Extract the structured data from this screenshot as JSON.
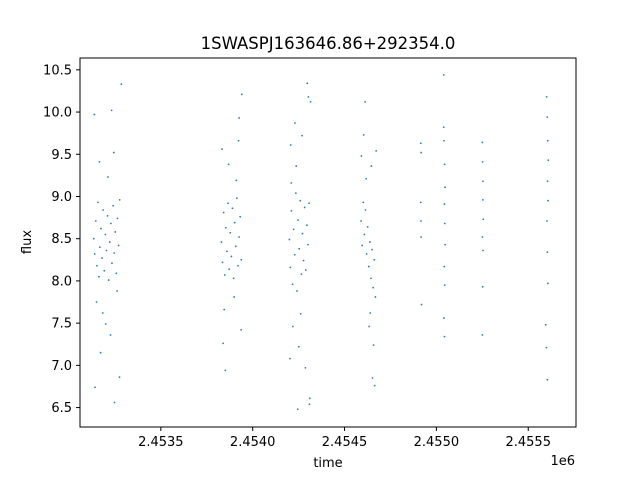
{
  "chart_data": {
    "type": "scatter",
    "title": "1SWASPJ163646.86+292354.0",
    "xlabel": "time",
    "ylabel": "flux",
    "x_offset_label": "1e6",
    "xlim": [
      2453060,
      2455760
    ],
    "ylim": [
      6.27,
      10.64
    ],
    "x_ticks": [
      {
        "value": 2453500,
        "label": "2.4535"
      },
      {
        "value": 2454000,
        "label": "2.4540"
      },
      {
        "value": 2454500,
        "label": "2.4545"
      },
      {
        "value": 2455000,
        "label": "2.4550"
      },
      {
        "value": 2455500,
        "label": "2.4555"
      }
    ],
    "y_ticks": [
      {
        "value": 6.5,
        "label": "6.5"
      },
      {
        "value": 7.0,
        "label": "7.0"
      },
      {
        "value": 7.5,
        "label": "7.5"
      },
      {
        "value": 8.0,
        "label": "8.0"
      },
      {
        "value": 8.5,
        "label": "8.5"
      },
      {
        "value": 9.0,
        "label": "9.0"
      },
      {
        "value": 9.5,
        "label": "9.5"
      },
      {
        "value": 10.0,
        "label": "10.0"
      },
      {
        "value": 10.5,
        "label": "10.5"
      }
    ],
    "grid": false,
    "marker_color": "#1f77b4",
    "series": [
      {
        "values": [
          {
            "x": 2453135,
            "y": 8.5
          },
          {
            "x": 2453140,
            "y": 8.32
          },
          {
            "x": 2453146,
            "y": 8.71
          },
          {
            "x": 2453152,
            "y": 8.18
          },
          {
            "x": 2453158,
            "y": 8.93
          },
          {
            "x": 2453163,
            "y": 8.05
          },
          {
            "x": 2453168,
            "y": 8.4
          },
          {
            "x": 2453174,
            "y": 8.62
          },
          {
            "x": 2453180,
            "y": 8.27
          },
          {
            "x": 2453186,
            "y": 8.84
          },
          {
            "x": 2453192,
            "y": 8.12
          },
          {
            "x": 2453198,
            "y": 8.55
          },
          {
            "x": 2453204,
            "y": 8.36
          },
          {
            "x": 2453210,
            "y": 8.77
          },
          {
            "x": 2453216,
            "y": 8.01
          },
          {
            "x": 2453222,
            "y": 8.46
          },
          {
            "x": 2453228,
            "y": 8.68
          },
          {
            "x": 2453234,
            "y": 8.21
          },
          {
            "x": 2453240,
            "y": 8.89
          },
          {
            "x": 2453246,
            "y": 8.33
          },
          {
            "x": 2453252,
            "y": 8.58
          },
          {
            "x": 2453258,
            "y": 8.09
          },
          {
            "x": 2453264,
            "y": 8.74
          },
          {
            "x": 2453270,
            "y": 8.42
          },
          {
            "x": 2453276,
            "y": 8.96
          },
          {
            "x": 2453138,
            "y": 9.97
          },
          {
            "x": 2453150,
            "y": 7.75
          },
          {
            "x": 2453166,
            "y": 9.41
          },
          {
            "x": 2453184,
            "y": 7.62
          },
          {
            "x": 2453212,
            "y": 9.23
          },
          {
            "x": 2453226,
            "y": 7.36
          },
          {
            "x": 2453244,
            "y": 9.52
          },
          {
            "x": 2453262,
            "y": 7.88
          },
          {
            "x": 2453142,
            "y": 6.74
          },
          {
            "x": 2453248,
            "y": 6.56
          },
          {
            "x": 2453285,
            "y": 10.33
          },
          {
            "x": 2453275,
            "y": 6.86
          },
          {
            "x": 2453232,
            "y": 10.02
          },
          {
            "x": 2453172,
            "y": 7.15
          },
          {
            "x": 2453200,
            "y": 7.49
          },
          {
            "x": 2453830,
            "y": 8.46
          },
          {
            "x": 2453836,
            "y": 8.22
          },
          {
            "x": 2453842,
            "y": 8.81
          },
          {
            "x": 2453848,
            "y": 8.07
          },
          {
            "x": 2453854,
            "y": 8.63
          },
          {
            "x": 2453860,
            "y": 8.35
          },
          {
            "x": 2453866,
            "y": 8.92
          },
          {
            "x": 2453872,
            "y": 8.14
          },
          {
            "x": 2453878,
            "y": 8.57
          },
          {
            "x": 2453884,
            "y": 8.29
          },
          {
            "x": 2453890,
            "y": 8.86
          },
          {
            "x": 2453896,
            "y": 8.03
          },
          {
            "x": 2453902,
            "y": 8.69
          },
          {
            "x": 2453908,
            "y": 8.41
          },
          {
            "x": 2453914,
            "y": 8.98
          },
          {
            "x": 2453920,
            "y": 8.18
          },
          {
            "x": 2453926,
            "y": 8.52
          },
          {
            "x": 2453932,
            "y": 8.76
          },
          {
            "x": 2453938,
            "y": 8.25
          },
          {
            "x": 2453833,
            "y": 9.56
          },
          {
            "x": 2453845,
            "y": 7.66
          },
          {
            "x": 2453869,
            "y": 9.38
          },
          {
            "x": 2453899,
            "y": 7.81
          },
          {
            "x": 2453923,
            "y": 9.66
          },
          {
            "x": 2453941,
            "y": 10.21
          },
          {
            "x": 2453937,
            "y": 7.42
          },
          {
            "x": 2453851,
            "y": 6.94
          },
          {
            "x": 2453839,
            "y": 7.26
          },
          {
            "x": 2453911,
            "y": 9.19
          },
          {
            "x": 2453926,
            "y": 9.93
          },
          {
            "x": 2454200,
            "y": 8.49
          },
          {
            "x": 2454205,
            "y": 8.16
          },
          {
            "x": 2454211,
            "y": 8.83
          },
          {
            "x": 2454217,
            "y": 7.96
          },
          {
            "x": 2454223,
            "y": 8.61
          },
          {
            "x": 2454229,
            "y": 8.31
          },
          {
            "x": 2454235,
            "y": 9.04
          },
          {
            "x": 2454241,
            "y": 7.88
          },
          {
            "x": 2454247,
            "y": 8.72
          },
          {
            "x": 2454253,
            "y": 8.38
          },
          {
            "x": 2454259,
            "y": 8.95
          },
          {
            "x": 2454265,
            "y": 8.08
          },
          {
            "x": 2454271,
            "y": 8.56
          },
          {
            "x": 2454277,
            "y": 8.24
          },
          {
            "x": 2454283,
            "y": 8.87
          },
          {
            "x": 2454289,
            "y": 8.13
          },
          {
            "x": 2454295,
            "y": 8.66
          },
          {
            "x": 2454301,
            "y": 8.43
          },
          {
            "x": 2454307,
            "y": 8.92
          },
          {
            "x": 2454207,
            "y": 9.61
          },
          {
            "x": 2454219,
            "y": 7.46
          },
          {
            "x": 2454237,
            "y": 9.36
          },
          {
            "x": 2454251,
            "y": 7.22
          },
          {
            "x": 2454269,
            "y": 9.72
          },
          {
            "x": 2454287,
            "y": 6.97
          },
          {
            "x": 2454303,
            "y": 10.18
          },
          {
            "x": 2454311,
            "y": 6.61
          },
          {
            "x": 2454309,
            "y": 6.54
          },
          {
            "x": 2454315,
            "y": 10.12
          },
          {
            "x": 2454203,
            "y": 7.08
          },
          {
            "x": 2454230,
            "y": 9.87
          },
          {
            "x": 2454261,
            "y": 7.61
          },
          {
            "x": 2454297,
            "y": 10.34
          },
          {
            "x": 2454245,
            "y": 6.48
          },
          {
            "x": 2454210,
            "y": 9.16
          },
          {
            "x": 2454590,
            "y": 8.71
          },
          {
            "x": 2454596,
            "y": 8.42
          },
          {
            "x": 2454602,
            "y": 8.93
          },
          {
            "x": 2454608,
            "y": 8.55
          },
          {
            "x": 2454614,
            "y": 8.84
          },
          {
            "x": 2454620,
            "y": 8.32
          },
          {
            "x": 2454626,
            "y": 8.64
          },
          {
            "x": 2454632,
            "y": 8.17
          },
          {
            "x": 2454638,
            "y": 8.46
          },
          {
            "x": 2454644,
            "y": 8.03
          },
          {
            "x": 2454650,
            "y": 8.37
          },
          {
            "x": 2454656,
            "y": 7.92
          },
          {
            "x": 2454662,
            "y": 8.25
          },
          {
            "x": 2454668,
            "y": 7.81
          },
          {
            "x": 2454592,
            "y": 9.48
          },
          {
            "x": 2454604,
            "y": 9.73
          },
          {
            "x": 2454618,
            "y": 9.21
          },
          {
            "x": 2454634,
            "y": 7.46
          },
          {
            "x": 2454646,
            "y": 9.36
          },
          {
            "x": 2454658,
            "y": 7.24
          },
          {
            "x": 2454664,
            "y": 6.76
          },
          {
            "x": 2454652,
            "y": 6.85
          },
          {
            "x": 2454612,
            "y": 10.12
          },
          {
            "x": 2454672,
            "y": 9.54
          },
          {
            "x": 2454640,
            "y": 7.62
          },
          {
            "x": 2454915,
            "y": 9.63
          },
          {
            "x": 2454917,
            "y": 9.52
          },
          {
            "x": 2454915,
            "y": 8.93
          },
          {
            "x": 2454916,
            "y": 8.71
          },
          {
            "x": 2454917,
            "y": 8.52
          },
          {
            "x": 2454919,
            "y": 7.72
          },
          {
            "x": 2455040,
            "y": 9.82
          },
          {
            "x": 2455042,
            "y": 9.66
          },
          {
            "x": 2455045,
            "y": 9.38
          },
          {
            "x": 2455047,
            "y": 9.11
          },
          {
            "x": 2455044,
            "y": 8.91
          },
          {
            "x": 2455046,
            "y": 8.68
          },
          {
            "x": 2455048,
            "y": 8.43
          },
          {
            "x": 2455043,
            "y": 8.17
          },
          {
            "x": 2455045,
            "y": 7.95
          },
          {
            "x": 2455041,
            "y": 7.56
          },
          {
            "x": 2455044,
            "y": 7.34
          },
          {
            "x": 2455040,
            "y": 10.44
          },
          {
            "x": 2455250,
            "y": 9.64
          },
          {
            "x": 2455252,
            "y": 9.41
          },
          {
            "x": 2455254,
            "y": 9.18
          },
          {
            "x": 2455253,
            "y": 8.96
          },
          {
            "x": 2455255,
            "y": 8.73
          },
          {
            "x": 2455251,
            "y": 8.52
          },
          {
            "x": 2455254,
            "y": 8.36
          },
          {
            "x": 2455252,
            "y": 7.93
          },
          {
            "x": 2455250,
            "y": 7.36
          },
          {
            "x": 2455600,
            "y": 10.18
          },
          {
            "x": 2455603,
            "y": 9.94
          },
          {
            "x": 2455606,
            "y": 9.66
          },
          {
            "x": 2455609,
            "y": 9.43
          },
          {
            "x": 2455605,
            "y": 9.18
          },
          {
            "x": 2455608,
            "y": 8.95
          },
          {
            "x": 2455602,
            "y": 8.71
          },
          {
            "x": 2455604,
            "y": 8.34
          },
          {
            "x": 2455607,
            "y": 7.97
          },
          {
            "x": 2455595,
            "y": 7.48
          },
          {
            "x": 2455599,
            "y": 7.21
          },
          {
            "x": 2455604,
            "y": 6.83
          }
        ]
      }
    ]
  }
}
